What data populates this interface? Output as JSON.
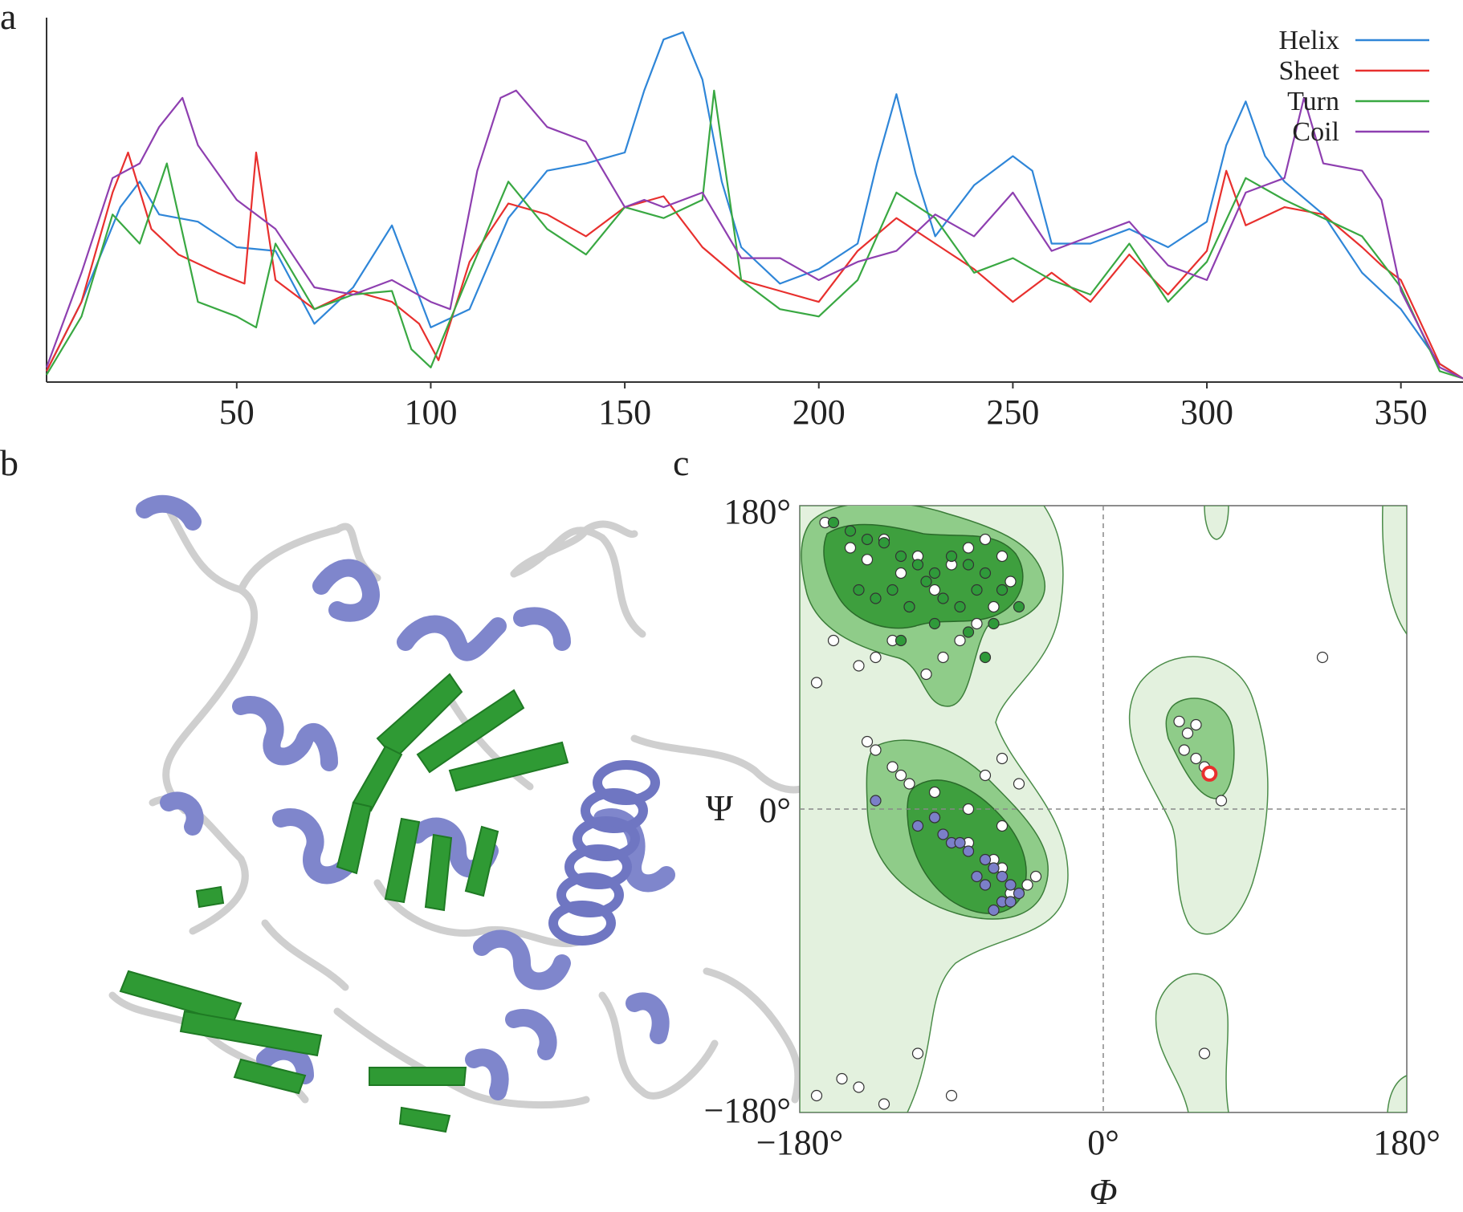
{
  "panels": {
    "a": {
      "letter": "a"
    },
    "b": {
      "letter": "b"
    },
    "c": {
      "letter": "c"
    }
  },
  "chart_data": [
    {
      "type": "line",
      "panel": "a",
      "xlabel": "",
      "ylabel": "",
      "xlim": [
        1,
        366
      ],
      "ylim": [
        0,
        1
      ],
      "xticks": [
        50,
        100,
        150,
        200,
        250,
        300,
        350
      ],
      "legend_position": "top-right",
      "series": [
        {
          "name": "Helix",
          "color": "#2f86d8",
          "x": [
            1,
            10,
            20,
            25,
            30,
            40,
            50,
            60,
            70,
            80,
            90,
            100,
            110,
            120,
            130,
            140,
            150,
            155,
            160,
            165,
            170,
            175,
            180,
            190,
            200,
            210,
            215,
            220,
            225,
            230,
            240,
            250,
            255,
            260,
            270,
            280,
            290,
            300,
            305,
            310,
            315,
            320,
            330,
            340,
            350,
            360,
            366
          ],
          "y": [
            0.03,
            0.22,
            0.48,
            0.55,
            0.46,
            0.44,
            0.37,
            0.36,
            0.16,
            0.26,
            0.43,
            0.15,
            0.2,
            0.45,
            0.58,
            0.6,
            0.63,
            0.8,
            0.94,
            0.96,
            0.83,
            0.55,
            0.37,
            0.27,
            0.31,
            0.38,
            0.6,
            0.79,
            0.57,
            0.4,
            0.54,
            0.62,
            0.58,
            0.38,
            0.38,
            0.42,
            0.37,
            0.44,
            0.65,
            0.77,
            0.62,
            0.55,
            0.46,
            0.3,
            0.2,
            0.05,
            0.01
          ]
        },
        {
          "name": "Sheet",
          "color": "#e8302e",
          "x": [
            1,
            10,
            18,
            22,
            28,
            35,
            45,
            52,
            55,
            60,
            70,
            80,
            90,
            97,
            102,
            110,
            120,
            130,
            140,
            150,
            160,
            170,
            180,
            190,
            200,
            210,
            220,
            230,
            240,
            250,
            260,
            270,
            280,
            290,
            300,
            305,
            310,
            320,
            330,
            340,
            345,
            350,
            360,
            366
          ],
          "y": [
            0.03,
            0.22,
            0.52,
            0.63,
            0.42,
            0.35,
            0.3,
            0.27,
            0.63,
            0.28,
            0.2,
            0.25,
            0.22,
            0.16,
            0.06,
            0.33,
            0.49,
            0.46,
            0.4,
            0.48,
            0.51,
            0.37,
            0.28,
            0.25,
            0.22,
            0.36,
            0.45,
            0.38,
            0.31,
            0.22,
            0.3,
            0.22,
            0.35,
            0.24,
            0.36,
            0.58,
            0.43,
            0.48,
            0.46,
            0.37,
            0.32,
            0.28,
            0.05,
            0.01
          ]
        },
        {
          "name": "Turn",
          "color": "#39a842",
          "x": [
            1,
            10,
            18,
            25,
            32,
            40,
            50,
            55,
            60,
            70,
            80,
            90,
            95,
            100,
            110,
            120,
            130,
            140,
            150,
            160,
            170,
            173,
            180,
            190,
            200,
            210,
            220,
            230,
            240,
            250,
            260,
            270,
            280,
            290,
            300,
            310,
            320,
            330,
            340,
            350,
            360,
            366
          ],
          "y": [
            0.02,
            0.18,
            0.46,
            0.38,
            0.6,
            0.22,
            0.18,
            0.15,
            0.38,
            0.2,
            0.24,
            0.25,
            0.09,
            0.04,
            0.3,
            0.55,
            0.42,
            0.35,
            0.48,
            0.45,
            0.5,
            0.8,
            0.28,
            0.2,
            0.18,
            0.28,
            0.52,
            0.45,
            0.3,
            0.34,
            0.28,
            0.24,
            0.38,
            0.22,
            0.33,
            0.56,
            0.5,
            0.45,
            0.4,
            0.26,
            0.03,
            0.01
          ]
        },
        {
          "name": "Coil",
          "color": "#8e3fb0",
          "x": [
            1,
            10,
            18,
            25,
            30,
            36,
            40,
            50,
            60,
            70,
            80,
            90,
            100,
            105,
            112,
            118,
            122,
            130,
            140,
            150,
            155,
            160,
            170,
            180,
            190,
            200,
            210,
            220,
            230,
            240,
            250,
            260,
            270,
            280,
            290,
            300,
            310,
            320,
            325,
            330,
            340,
            345,
            350,
            360,
            366
          ],
          "y": [
            0.04,
            0.3,
            0.56,
            0.6,
            0.7,
            0.78,
            0.65,
            0.5,
            0.42,
            0.26,
            0.24,
            0.28,
            0.22,
            0.2,
            0.58,
            0.78,
            0.8,
            0.7,
            0.66,
            0.48,
            0.5,
            0.48,
            0.52,
            0.34,
            0.34,
            0.28,
            0.33,
            0.36,
            0.46,
            0.4,
            0.52,
            0.36,
            0.4,
            0.44,
            0.32,
            0.28,
            0.52,
            0.56,
            0.78,
            0.6,
            0.58,
            0.5,
            0.25,
            0.04,
            0.01
          ]
        }
      ]
    },
    {
      "type": "scatter",
      "panel": "c",
      "xlabel": "Φ",
      "ylabel": "Ψ",
      "xlim": [
        -180,
        180
      ],
      "ylim": [
        -180,
        180
      ],
      "x_tick_labels": [
        "−180°",
        "0°",
        "180°"
      ],
      "y_tick_labels": [
        "180°",
        "0°",
        "−180°"
      ],
      "grid": "dashed lines at 0°",
      "region_colors": {
        "outer": "#e3f1de",
        "allowed": "#8fcc89",
        "core": "#3e9f3e"
      },
      "point_colors": {
        "general": "#ffffff",
        "beta": "#2f9a3a",
        "alpha": "#7b7fc9",
        "outlier": "#e8302e"
      },
      "series": [
        {
          "name": "",
          "color": "#ffffff",
          "x": [
            -165,
            -150,
            -140,
            -130,
            -120,
            -110,
            -100,
            -90,
            -80,
            -70,
            -60,
            -55,
            -65,
            -75,
            -85,
            -95,
            -105,
            -115,
            -125,
            -135,
            -145,
            -160,
            -170,
            -140,
            -120,
            -100,
            -80,
            -60,
            -45,
            -40,
            -60,
            -80,
            -100,
            -115,
            -125,
            -135,
            -55,
            -65,
            -70,
            -60,
            -50,
            45,
            50,
            55,
            48,
            55,
            60,
            70,
            60,
            130,
            -170,
            -155,
            -145,
            -130,
            -110,
            -90
          ],
          "y": [
            170,
            155,
            148,
            160,
            140,
            150,
            130,
            145,
            155,
            160,
            150,
            135,
            120,
            110,
            100,
            90,
            80,
            120,
            100,
            90,
            85,
            100,
            75,
            40,
            20,
            -5,
            -20,
            -35,
            -45,
            -40,
            -10,
            0,
            10,
            15,
            25,
            35,
            -50,
            -30,
            20,
            30,
            15,
            52,
            45,
            50,
            35,
            30,
            25,
            5,
            -145,
            90,
            -170,
            -160,
            -165,
            -175,
            -145,
            -170
          ]
        },
        {
          "name": "",
          "color": "#2f9a3a",
          "x": [
            -160,
            -150,
            -140,
            -130,
            -120,
            -110,
            -100,
            -90,
            -80,
            -70,
            -60,
            -50,
            -145,
            -135,
            -125,
            -115,
            -105,
            -95,
            -85,
            -75,
            -65,
            -120,
            -100,
            -80,
            -70
          ],
          "y": [
            170,
            165,
            160,
            158,
            150,
            145,
            140,
            150,
            145,
            140,
            130,
            120,
            130,
            125,
            130,
            120,
            135,
            125,
            120,
            130,
            110,
            100,
            110,
            105,
            90
          ]
        },
        {
          "name": "",
          "color": "#7b7fc9",
          "x": [
            -135,
            -110,
            -100,
            -90,
            -80,
            -70,
            -65,
            -60,
            -55,
            -50,
            -60,
            -70,
            -65,
            -55,
            -75,
            -85,
            -95
          ],
          "y": [
            5,
            -10,
            -5,
            -20,
            -25,
            -30,
            -35,
            -40,
            -45,
            -50,
            -55,
            -45,
            -60,
            -55,
            -40,
            -20,
            -15
          ]
        },
        {
          "name": "",
          "color": "#e8302e",
          "x": [
            63
          ],
          "y": [
            21
          ]
        }
      ]
    }
  ]
}
